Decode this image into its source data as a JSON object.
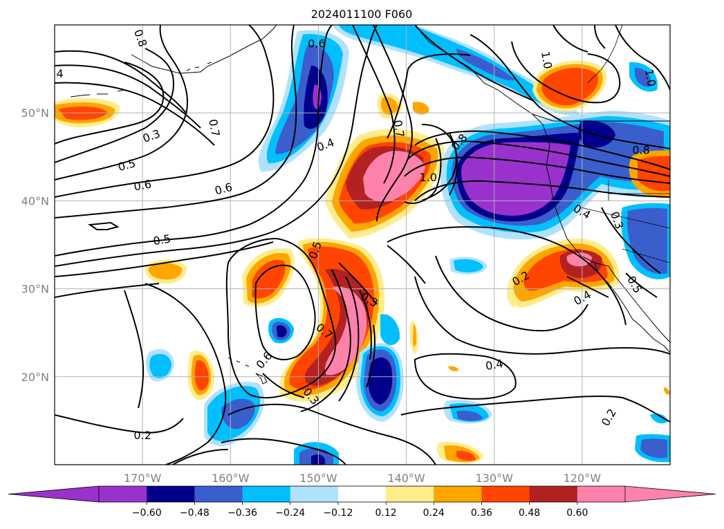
{
  "title": "2024011100 F060",
  "map": {
    "lon_range": [
      -180,
      -110
    ],
    "lat_range": [
      10,
      60
    ],
    "lon_ticks": [
      {
        "lon": -170,
        "label": "170°W"
      },
      {
        "lon": -160,
        "label": "160°W"
      },
      {
        "lon": -150,
        "label": "150°W"
      },
      {
        "lon": -140,
        "label": "140°W"
      },
      {
        "lon": -130,
        "label": "130°W"
      },
      {
        "lon": -120,
        "label": "120°W"
      }
    ],
    "lat_ticks": [
      {
        "lat": 50,
        "label": "50°N"
      },
      {
        "lat": 40,
        "label": "40°N"
      },
      {
        "lat": 30,
        "label": "30°N"
      },
      {
        "lat": 20,
        "label": "20°N"
      }
    ],
    "grid": true
  },
  "colorbar": {
    "boundaries": [
      -0.72,
      -0.6,
      -0.48,
      -0.36,
      -0.24,
      -0.12,
      0.12,
      0.24,
      0.36,
      0.48,
      0.6,
      0.72
    ],
    "colors": [
      "#9932cc",
      "#00008b",
      "#3a5fcd",
      "#00bfff",
      "#b0e2ff",
      "#ffffff",
      "#ffec8b",
      "#ffa500",
      "#ff4500",
      "#b22222",
      "#ff82ab"
    ],
    "extend_low_color": "#9932cc",
    "extend_high_color": "#ff82ab",
    "tick_labels": [
      "−0.60",
      "−0.48",
      "−0.36",
      "−0.24",
      "−0.12",
      "0.12",
      "0.24",
      "0.36",
      "0.48",
      "0.60"
    ]
  },
  "contour_labels": [
    {
      "text": "0.8",
      "lon": -170.2,
      "lat": 58.5,
      "rot": 70
    },
    {
      "text": "4",
      "lon": -179.4,
      "lat": 54.5,
      "rot": 0
    },
    {
      "text": "0.7",
      "lon": -161.8,
      "lat": 48.3,
      "rot": 80
    },
    {
      "text": "0.3",
      "lon": -169.0,
      "lat": 47.4,
      "rot": -20
    },
    {
      "text": "0.5",
      "lon": -171.8,
      "lat": 44.1,
      "rot": -15
    },
    {
      "text": "0.6",
      "lon": -170.0,
      "lat": 41.8,
      "rot": -10
    },
    {
      "text": "0.6",
      "lon": -160.8,
      "lat": 41.4,
      "rot": -15
    },
    {
      "text": "0.5",
      "lon": -167.8,
      "lat": 35.6,
      "rot": -10
    },
    {
      "text": "0.6",
      "lon": -150.2,
      "lat": 57.9,
      "rot": 0
    },
    {
      "text": "0.4",
      "lon": -149.2,
      "lat": 46.4,
      "rot": -20
    },
    {
      "text": "0.7",
      "lon": -140.8,
      "lat": 48.2,
      "rot": 80
    },
    {
      "text": "0.8",
      "lon": -134.0,
      "lat": 46.7,
      "rot": -50
    },
    {
      "text": "1.0",
      "lon": -137.5,
      "lat": 42.7,
      "rot": 0
    },
    {
      "text": "1.0",
      "lon": -124.0,
      "lat": 56.0,
      "rot": 80
    },
    {
      "text": "1.0",
      "lon": -112.2,
      "lat": 54.0,
      "rot": 80
    },
    {
      "text": "0.8",
      "lon": -113.3,
      "lat": 45.8,
      "rot": 0
    },
    {
      "text": "0.4",
      "lon": -120.0,
      "lat": 38.8,
      "rot": 30
    },
    {
      "text": "0.3",
      "lon": -116.0,
      "lat": 37.8,
      "rot": 70
    },
    {
      "text": "0.5",
      "lon": -150.4,
      "lat": 34.4,
      "rot": -70
    },
    {
      "text": "0.3",
      "lon": -144.2,
      "lat": 28.8,
      "rot": 30
    },
    {
      "text": "0.7",
      "lon": -149.3,
      "lat": 25.2,
      "rot": 40
    },
    {
      "text": "0.6",
      "lon": -156.2,
      "lat": 21.9,
      "rot": -50
    },
    {
      "text": "0.3",
      "lon": -150.8,
      "lat": 17.8,
      "rot": 50
    },
    {
      "text": "0.2",
      "lon": -127.0,
      "lat": 31.2,
      "rot": -30
    },
    {
      "text": "0.4",
      "lon": -120.0,
      "lat": 29.0,
      "rot": -30
    },
    {
      "text": "0.4",
      "lon": -130.0,
      "lat": 21.4,
      "rot": -10
    },
    {
      "text": "0.2",
      "lon": -117.0,
      "lat": 15.4,
      "rot": -60
    },
    {
      "text": "0.2",
      "lon": -170.0,
      "lat": 13.4,
      "rot": 0
    },
    {
      "text": "0.5",
      "lon": -114.0,
      "lat": 30.5,
      "rot": 60
    }
  ]
}
